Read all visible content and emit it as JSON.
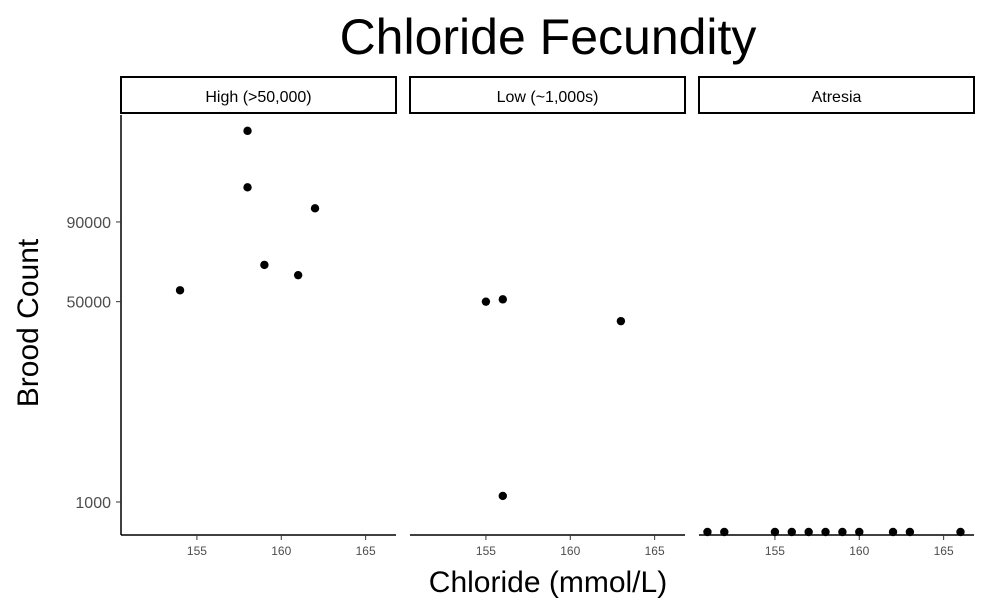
{
  "chart_data": {
    "type": "scatter",
    "title": "Chloride Fecundity",
    "xlabel": "Chloride (mmol/L)",
    "ylabel": "Brood Count",
    "y_scale": "sqrt",
    "ylim": [
      0,
      162000
    ],
    "xlim": [
      150.5,
      166.8
    ],
    "x_ticks": [
      155,
      160,
      165
    ],
    "y_ticks": [
      1000,
      50000,
      90000
    ],
    "grid": false,
    "point_color": "#000000",
    "facets": [
      {
        "label": "High (>50,000)",
        "points": [
          {
            "x": 154,
            "y": 55000
          },
          {
            "x": 158,
            "y": 150000
          },
          {
            "x": 158,
            "y": 111000
          },
          {
            "x": 159,
            "y": 67000
          },
          {
            "x": 161,
            "y": 62000
          },
          {
            "x": 162,
            "y": 98000
          }
        ]
      },
      {
        "label": "Low (~1,000s)",
        "points": [
          {
            "x": 155,
            "y": 50000
          },
          {
            "x": 156,
            "y": 51000
          },
          {
            "x": 156,
            "y": 1400
          },
          {
            "x": 163,
            "y": 42000
          }
        ]
      },
      {
        "label": "Atresia",
        "points": [
          {
            "x": 151,
            "y": 0
          },
          {
            "x": 152,
            "y": 0
          },
          {
            "x": 155,
            "y": 0
          },
          {
            "x": 156,
            "y": 0
          },
          {
            "x": 157,
            "y": 0
          },
          {
            "x": 158,
            "y": 0
          },
          {
            "x": 159,
            "y": 0
          },
          {
            "x": 160,
            "y": 0
          },
          {
            "x": 162,
            "y": 0
          },
          {
            "x": 163,
            "y": 0
          },
          {
            "x": 166,
            "y": 0
          }
        ]
      }
    ]
  }
}
